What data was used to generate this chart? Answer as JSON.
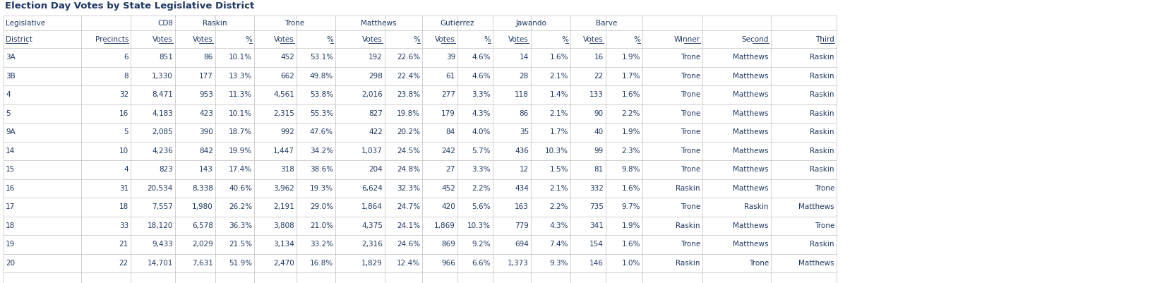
{
  "title": "Election Day Votes by State Legislative District",
  "districts": [
    "3A",
    "3B",
    "4",
    "5",
    "9A",
    "14",
    "15",
    "16",
    "17",
    "18",
    "19",
    "20"
  ],
  "precincts": [
    6,
    8,
    32,
    16,
    5,
    10,
    4,
    31,
    18,
    33,
    21,
    22
  ],
  "cd8_votes": [
    851,
    1330,
    8471,
    4183,
    2085,
    4236,
    823,
    20534,
    7557,
    18120,
    9433,
    14701
  ],
  "raskin_votes": [
    86,
    177,
    953,
    423,
    390,
    842,
    143,
    8338,
    1980,
    6578,
    2029,
    7631
  ],
  "raskin_pct": [
    "10.1%",
    "13.3%",
    "11.3%",
    "10.1%",
    "18.7%",
    "19.9%",
    "17.4%",
    "40.6%",
    "26.2%",
    "36.3%",
    "21.5%",
    "51.9%"
  ],
  "trone_votes": [
    452,
    662,
    4561,
    2315,
    992,
    1447,
    318,
    3962,
    2191,
    3808,
    3134,
    2470
  ],
  "trone_pct": [
    "53.1%",
    "49.8%",
    "53.8%",
    "55.3%",
    "47.6%",
    "34.2%",
    "38.6%",
    "19.3%",
    "29.0%",
    "21.0%",
    "33.2%",
    "16.8%"
  ],
  "matthews_votes": [
    192,
    298,
    2016,
    827,
    422,
    1037,
    204,
    6624,
    1864,
    4375,
    2316,
    1829
  ],
  "matthews_pct": [
    "22.6%",
    "22.4%",
    "23.8%",
    "19.8%",
    "20.2%",
    "24.5%",
    "24.8%",
    "32.3%",
    "24.7%",
    "24.1%",
    "24.6%",
    "12.4%"
  ],
  "gutierrez_votes": [
    39,
    61,
    277,
    179,
    84,
    242,
    27,
    452,
    420,
    1869,
    869,
    966
  ],
  "gutierrez_pct": [
    "4.6%",
    "4.6%",
    "3.3%",
    "4.3%",
    "4.0%",
    "5.7%",
    "3.3%",
    "2.2%",
    "5.6%",
    "10.3%",
    "9.2%",
    "6.6%"
  ],
  "jawando_votes": [
    14,
    28,
    118,
    86,
    35,
    436,
    12,
    434,
    163,
    779,
    694,
    1373
  ],
  "jawando_pct": [
    "1.6%",
    "2.1%",
    "1.4%",
    "2.1%",
    "1.7%",
    "10.3%",
    "1.5%",
    "2.1%",
    "2.2%",
    "4.3%",
    "7.4%",
    "9.3%"
  ],
  "barve_votes": [
    16,
    22,
    133,
    90,
    40,
    99,
    81,
    332,
    735,
    341,
    154,
    146
  ],
  "barve_pct": [
    "1.9%",
    "1.7%",
    "1.6%",
    "2.2%",
    "1.9%",
    "2.3%",
    "9.8%",
    "1.6%",
    "9.7%",
    "1.9%",
    "1.6%",
    "1.0%"
  ],
  "winner": [
    "Trone",
    "Trone",
    "Trone",
    "Trone",
    "Trone",
    "Trone",
    "Trone",
    "Raskin",
    "Trone",
    "Raskin",
    "Trone",
    "Raskin"
  ],
  "second": [
    "Matthews",
    "Matthews",
    "Matthews",
    "Matthews",
    "Matthews",
    "Matthews",
    "Matthews",
    "Matthews",
    "Raskin",
    "Matthews",
    "Matthews",
    "Trone"
  ],
  "third": [
    "Raskin",
    "Raskin",
    "Raskin",
    "Raskin",
    "Raskin",
    "Raskin",
    "Raskin",
    "Trone",
    "Matthews",
    "Trone",
    "Raskin",
    "Matthews"
  ],
  "title_color": "#1F3864",
  "text_color": "#1F3864",
  "grid_color": "#BFBFBF",
  "bg_color": "#FFFFFF",
  "title_fontsize": 9.5,
  "data_fontsize": 7.5,
  "header_fontsize": 7.5
}
